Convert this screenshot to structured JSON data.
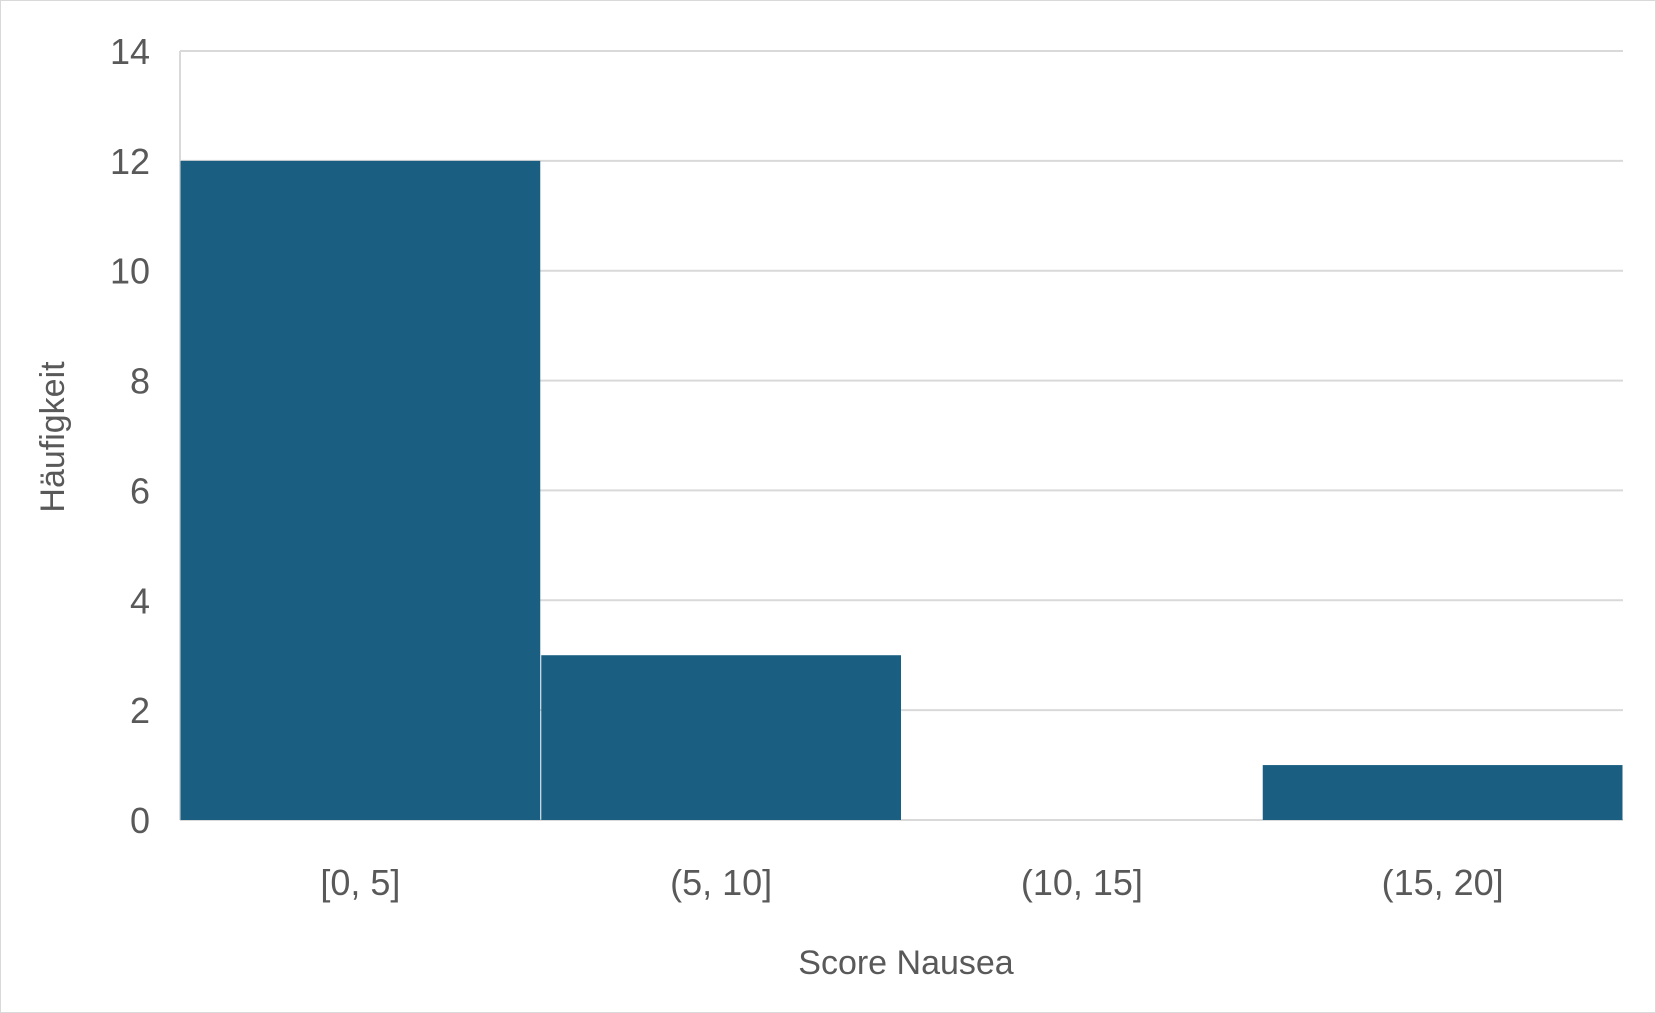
{
  "chart_data": {
    "type": "bar",
    "subtype": "histogram",
    "categories": [
      "[0, 5]",
      "(5, 10]",
      "(10, 15]",
      "(15, 20]"
    ],
    "values": [
      12,
      3,
      0,
      1
    ],
    "title": "",
    "xlabel": "Score Nausea",
    "ylabel": "Häufigkeit",
    "ylim": [
      0,
      14
    ],
    "yticks": [
      0,
      2,
      4,
      6,
      8,
      10,
      12,
      14
    ],
    "grid": true,
    "legend": "none",
    "colors": {
      "bar": "#1a5f81",
      "grid": "#d9d9d9",
      "text": "#595959"
    }
  }
}
